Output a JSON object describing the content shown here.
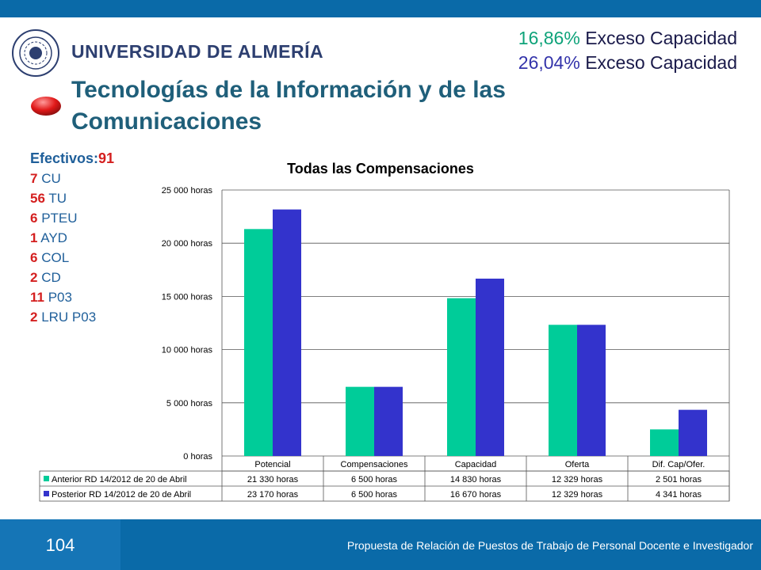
{
  "header": {
    "university_name": "UNIVERSIDAD DE ALMERÍA",
    "capacity_lines": [
      {
        "pct": "16,86%",
        "text": " Exceso Capacidad",
        "color": "#0fa37a"
      },
      {
        "pct": "26,04%",
        "text": " Exceso Capacidad",
        "color": "#3333aa"
      }
    ],
    "title": "Tecnologías de la Información y de las Comunicaciones"
  },
  "staff": {
    "label": "Efectivos:",
    "total": "91",
    "items": [
      {
        "count": "7",
        "type": "CU"
      },
      {
        "count": "56",
        "type": "TU"
      },
      {
        "count": "6",
        "type": "PTEU"
      },
      {
        "count": "1",
        "type": "AYD"
      },
      {
        "count": "6",
        "type": "COL"
      },
      {
        "count": "2",
        "type": "CD"
      },
      {
        "count": "11",
        "type": "P03"
      },
      {
        "count": "2",
        "type": "LRU P03"
      }
    ]
  },
  "chart_data": {
    "type": "bar",
    "title": "Todas las Compensaciones",
    "categories": [
      "Potencial",
      "Compensaciones",
      "Capacidad",
      "Oferta",
      "Dif. Cap/Ofer."
    ],
    "series": [
      {
        "name": "Anterior RD 14/2012 de 20 de Abril",
        "color": "#00cc99",
        "values": [
          21330,
          6500,
          14830,
          12329,
          2501
        ],
        "labels": [
          "21 330 horas",
          "6 500 horas",
          "14 830 horas",
          "12 329 horas",
          "2 501 horas"
        ]
      },
      {
        "name": "Posterior RD 14/2012 de 20 de Abril",
        "color": "#3333cc",
        "values": [
          23170,
          6500,
          16670,
          12329,
          4341
        ],
        "labels": [
          "23 170 horas",
          "6 500 horas",
          "16 670 horas",
          "12 329 horas",
          "4 341 horas"
        ]
      }
    ],
    "ylim": [
      0,
      25000
    ],
    "yticks": [
      0,
      5000,
      10000,
      15000,
      20000,
      25000
    ],
    "ytick_labels": [
      "0 horas",
      "5 000 horas",
      "10 000 horas",
      "15 000 horas",
      "20 000 horas",
      "25 000 horas"
    ],
    "grid": true,
    "legend": "data-table"
  },
  "footer": {
    "page_number": "104",
    "text": "Propuesta de Relación de Puestos de Trabajo de Personal Docente e Investigador"
  }
}
